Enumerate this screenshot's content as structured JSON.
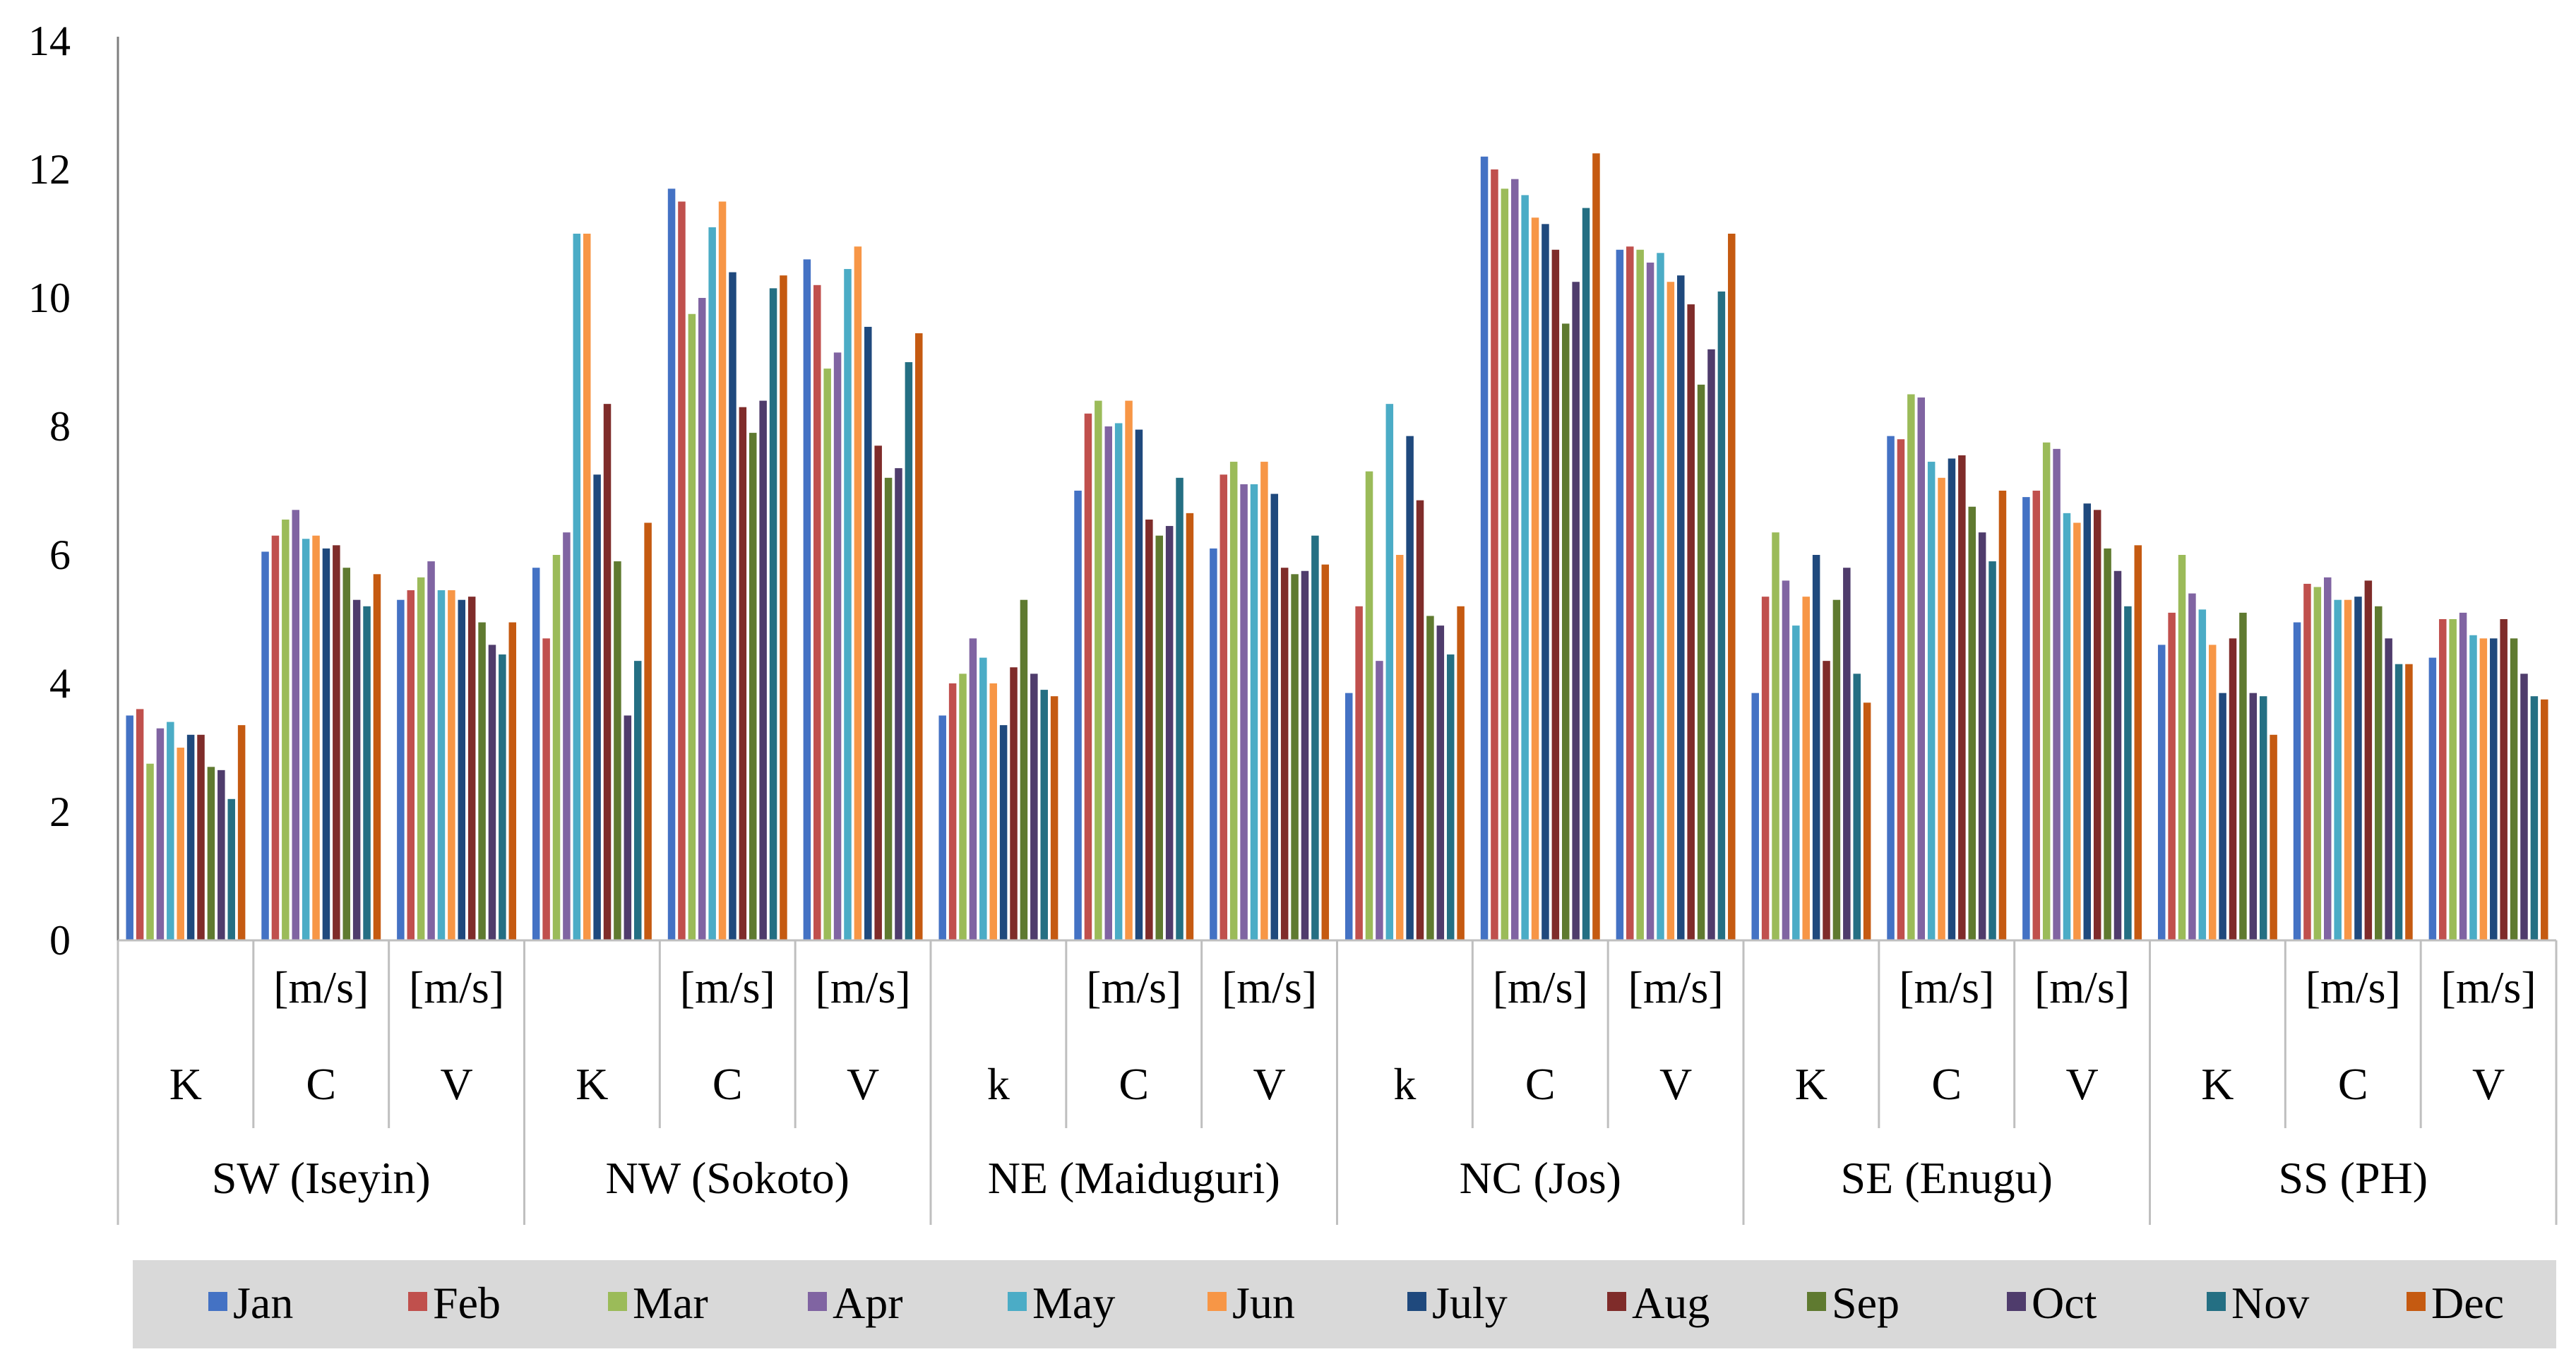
{
  "chart_data": {
    "type": "bar",
    "title": "",
    "xlabel": "",
    "ylabel": "",
    "ylim": [
      0,
      14
    ],
    "yticks": [
      0,
      2,
      4,
      6,
      8,
      10,
      12,
      14
    ],
    "grid": false,
    "legend_position": "bottom",
    "legend_background": "#d9d9d9",
    "groups": [
      {
        "name": "SW (Iseyin)",
        "categories": [
          {
            "unit": "",
            "param": "K"
          },
          {
            "unit": "[m/s]",
            "param": "C"
          },
          {
            "unit": "[m/s]",
            "param": "V"
          }
        ]
      },
      {
        "name": "NW (Sokoto)",
        "categories": [
          {
            "unit": "",
            "param": "K"
          },
          {
            "unit": "[m/s]",
            "param": "C"
          },
          {
            "unit": "[m/s]",
            "param": "V"
          }
        ]
      },
      {
        "name": "NE (Maiduguri)",
        "categories": [
          {
            "unit": "",
            "param": "k"
          },
          {
            "unit": "[m/s]",
            "param": "C"
          },
          {
            "unit": "[m/s]",
            "param": "V"
          }
        ]
      },
      {
        "name": "NC (Jos)",
        "categories": [
          {
            "unit": "",
            "param": "k"
          },
          {
            "unit": "[m/s]",
            "param": "C"
          },
          {
            "unit": "[m/s]",
            "param": "V"
          }
        ]
      },
      {
        "name": "SE (Enugu)",
        "categories": [
          {
            "unit": "",
            "param": "K"
          },
          {
            "unit": "[m/s]",
            "param": "C"
          },
          {
            "unit": "[m/s]",
            "param": "V"
          }
        ]
      },
      {
        "name": "SS (PH)",
        "categories": [
          {
            "unit": "",
            "param": "K"
          },
          {
            "unit": "[m/s]",
            "param": "C"
          },
          {
            "unit": "[m/s]",
            "param": "V"
          }
        ]
      }
    ],
    "series": [
      {
        "name": "Jan",
        "color": "#4472c4",
        "values": [
          3.5,
          6.05,
          5.3,
          5.8,
          11.7,
          10.6,
          3.5,
          7.0,
          6.1,
          3.85,
          12.2,
          10.75,
          3.85,
          7.85,
          6.9,
          4.6,
          4.95,
          4.4
        ]
      },
      {
        "name": "Feb",
        "color": "#c0504d",
        "values": [
          3.6,
          6.3,
          5.45,
          4.7,
          11.5,
          10.2,
          4.0,
          8.2,
          7.25,
          5.2,
          12.0,
          10.8,
          5.35,
          7.8,
          7.0,
          5.1,
          5.55,
          5.0
        ]
      },
      {
        "name": "Mar",
        "color": "#9bbb59",
        "values": [
          2.75,
          6.55,
          5.65,
          6.0,
          9.75,
          8.9,
          4.15,
          8.4,
          7.45,
          7.3,
          11.7,
          10.75,
          6.35,
          8.5,
          7.75,
          6.0,
          5.5,
          5.0
        ]
      },
      {
        "name": "Apr",
        "color": "#8064a2",
        "values": [
          3.3,
          6.7,
          5.9,
          6.35,
          10.0,
          9.15,
          4.7,
          8.0,
          7.1,
          4.35,
          11.85,
          10.55,
          5.6,
          8.45,
          7.65,
          5.4,
          5.65,
          5.1
        ]
      },
      {
        "name": "May",
        "color": "#4bacc6",
        "values": [
          3.4,
          6.25,
          5.45,
          11.0,
          11.1,
          10.45,
          4.4,
          8.05,
          7.1,
          8.35,
          11.6,
          10.7,
          4.9,
          7.45,
          6.65,
          5.15,
          5.3,
          4.75
        ]
      },
      {
        "name": "Jun",
        "color": "#f79646",
        "values": [
          3.0,
          6.3,
          5.45,
          11.0,
          11.5,
          10.8,
          4.0,
          8.4,
          7.45,
          6.0,
          11.25,
          10.25,
          5.35,
          7.2,
          6.5,
          4.6,
          5.3,
          4.7
        ]
      },
      {
        "name": "July",
        "color": "#1f497d",
        "values": [
          3.2,
          6.1,
          5.3,
          7.25,
          10.4,
          9.55,
          3.35,
          7.95,
          6.95,
          7.85,
          11.15,
          10.35,
          6.0,
          7.5,
          6.8,
          3.85,
          5.35,
          4.7
        ]
      },
      {
        "name": "Aug",
        "color": "#7f2c2a",
        "values": [
          3.2,
          6.15,
          5.35,
          8.35,
          8.3,
          7.7,
          4.25,
          6.55,
          5.8,
          6.85,
          10.75,
          9.9,
          4.35,
          7.55,
          6.7,
          4.7,
          5.6,
          5.0
        ]
      },
      {
        "name": "Sep",
        "color": "#5f7a30",
        "values": [
          2.7,
          5.8,
          4.95,
          5.9,
          7.9,
          7.2,
          5.3,
          6.3,
          5.7,
          5.05,
          9.6,
          8.65,
          5.3,
          6.75,
          6.1,
          5.1,
          5.2,
          4.7
        ]
      },
      {
        "name": "Oct",
        "color": "#4f3c6c",
        "values": [
          2.65,
          5.3,
          4.6,
          3.5,
          8.4,
          7.35,
          4.15,
          6.45,
          5.75,
          4.9,
          10.25,
          9.2,
          5.8,
          6.35,
          5.75,
          3.85,
          4.7,
          4.15
        ]
      },
      {
        "name": "Nov",
        "color": "#246f83",
        "values": [
          2.2,
          5.2,
          4.45,
          4.35,
          10.15,
          9.0,
          3.9,
          7.2,
          6.3,
          4.45,
          11.4,
          10.1,
          4.15,
          5.9,
          5.2,
          3.8,
          4.3,
          3.8
        ]
      },
      {
        "name": "Dec",
        "color": "#c55a11",
        "values": [
          3.35,
          5.7,
          4.95,
          6.5,
          10.35,
          9.45,
          3.8,
          6.65,
          5.85,
          5.2,
          12.25,
          11.0,
          3.7,
          7.0,
          6.15,
          3.2,
          4.3,
          3.75
        ]
      }
    ]
  }
}
